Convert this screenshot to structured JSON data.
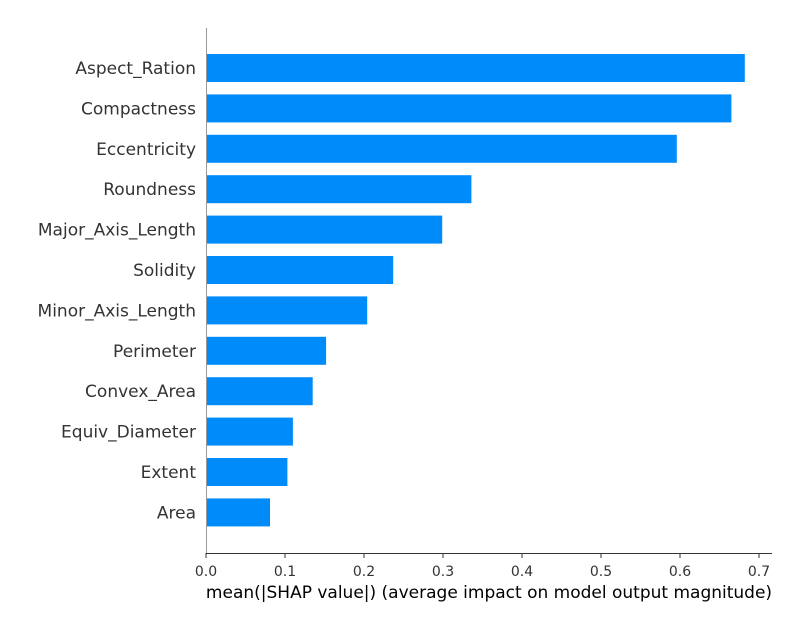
{
  "chart_data": {
    "type": "bar",
    "orientation": "horizontal",
    "categories": [
      "Aspect_Ration",
      "Compactness",
      "Eccentricity",
      "Roundness",
      "Major_Axis_Length",
      "Solidity",
      "Minor_Axis_Length",
      "Perimeter",
      "Convex_Area",
      "Equiv_Diameter",
      "Extent",
      "Area"
    ],
    "values": [
      0.682,
      0.665,
      0.596,
      0.336,
      0.299,
      0.237,
      0.204,
      0.152,
      0.135,
      0.11,
      0.103,
      0.081
    ],
    "title": "",
    "xlabel": "mean(|SHAP value|) (average impact on model output magnitude)",
    "ylabel": "",
    "xlim": [
      0,
      0.72
    ],
    "xticks": [
      0.0,
      0.1,
      0.2,
      0.3,
      0.4,
      0.5,
      0.6,
      0.7
    ],
    "xtick_labels": [
      "0.0",
      "0.1",
      "0.2",
      "0.3",
      "0.4",
      "0.5",
      "0.6",
      "0.7"
    ],
    "bar_color": "#008bfb",
    "grid": false,
    "legend": "none"
  }
}
